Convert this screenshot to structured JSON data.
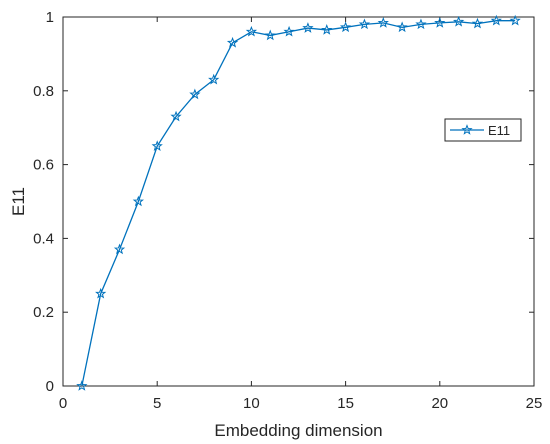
{
  "chart_data": {
    "type": "line",
    "title": "",
    "xlabel": "Embedding dimension",
    "ylabel": "E11",
    "xlim": [
      0,
      25
    ],
    "ylim": [
      0,
      1
    ],
    "xticks": [
      0,
      5,
      10,
      15,
      20,
      25
    ],
    "yticks": [
      0,
      0.2,
      0.4,
      0.6,
      0.8,
      1
    ],
    "xtick_labels": [
      "0",
      "5",
      "10",
      "15",
      "20",
      "25"
    ],
    "ytick_labels": [
      "0",
      "0.2",
      "0.4",
      "0.6",
      "0.8",
      "1"
    ],
    "grid": false,
    "legend_position": "right",
    "series": [
      {
        "name": "E11",
        "color": "#0072BD",
        "marker": "star",
        "x": [
          1,
          2,
          3,
          4,
          5,
          6,
          7,
          8,
          9,
          10,
          11,
          12,
          13,
          14,
          15,
          16,
          17,
          18,
          19,
          20,
          21,
          22,
          23,
          24
        ],
        "y": [
          0.0,
          0.25,
          0.37,
          0.5,
          0.65,
          0.73,
          0.79,
          0.83,
          0.93,
          0.96,
          0.95,
          0.96,
          0.97,
          0.965,
          0.972,
          0.98,
          0.984,
          0.972,
          0.98,
          0.984,
          0.987,
          0.982,
          0.99,
          0.99
        ]
      }
    ]
  }
}
